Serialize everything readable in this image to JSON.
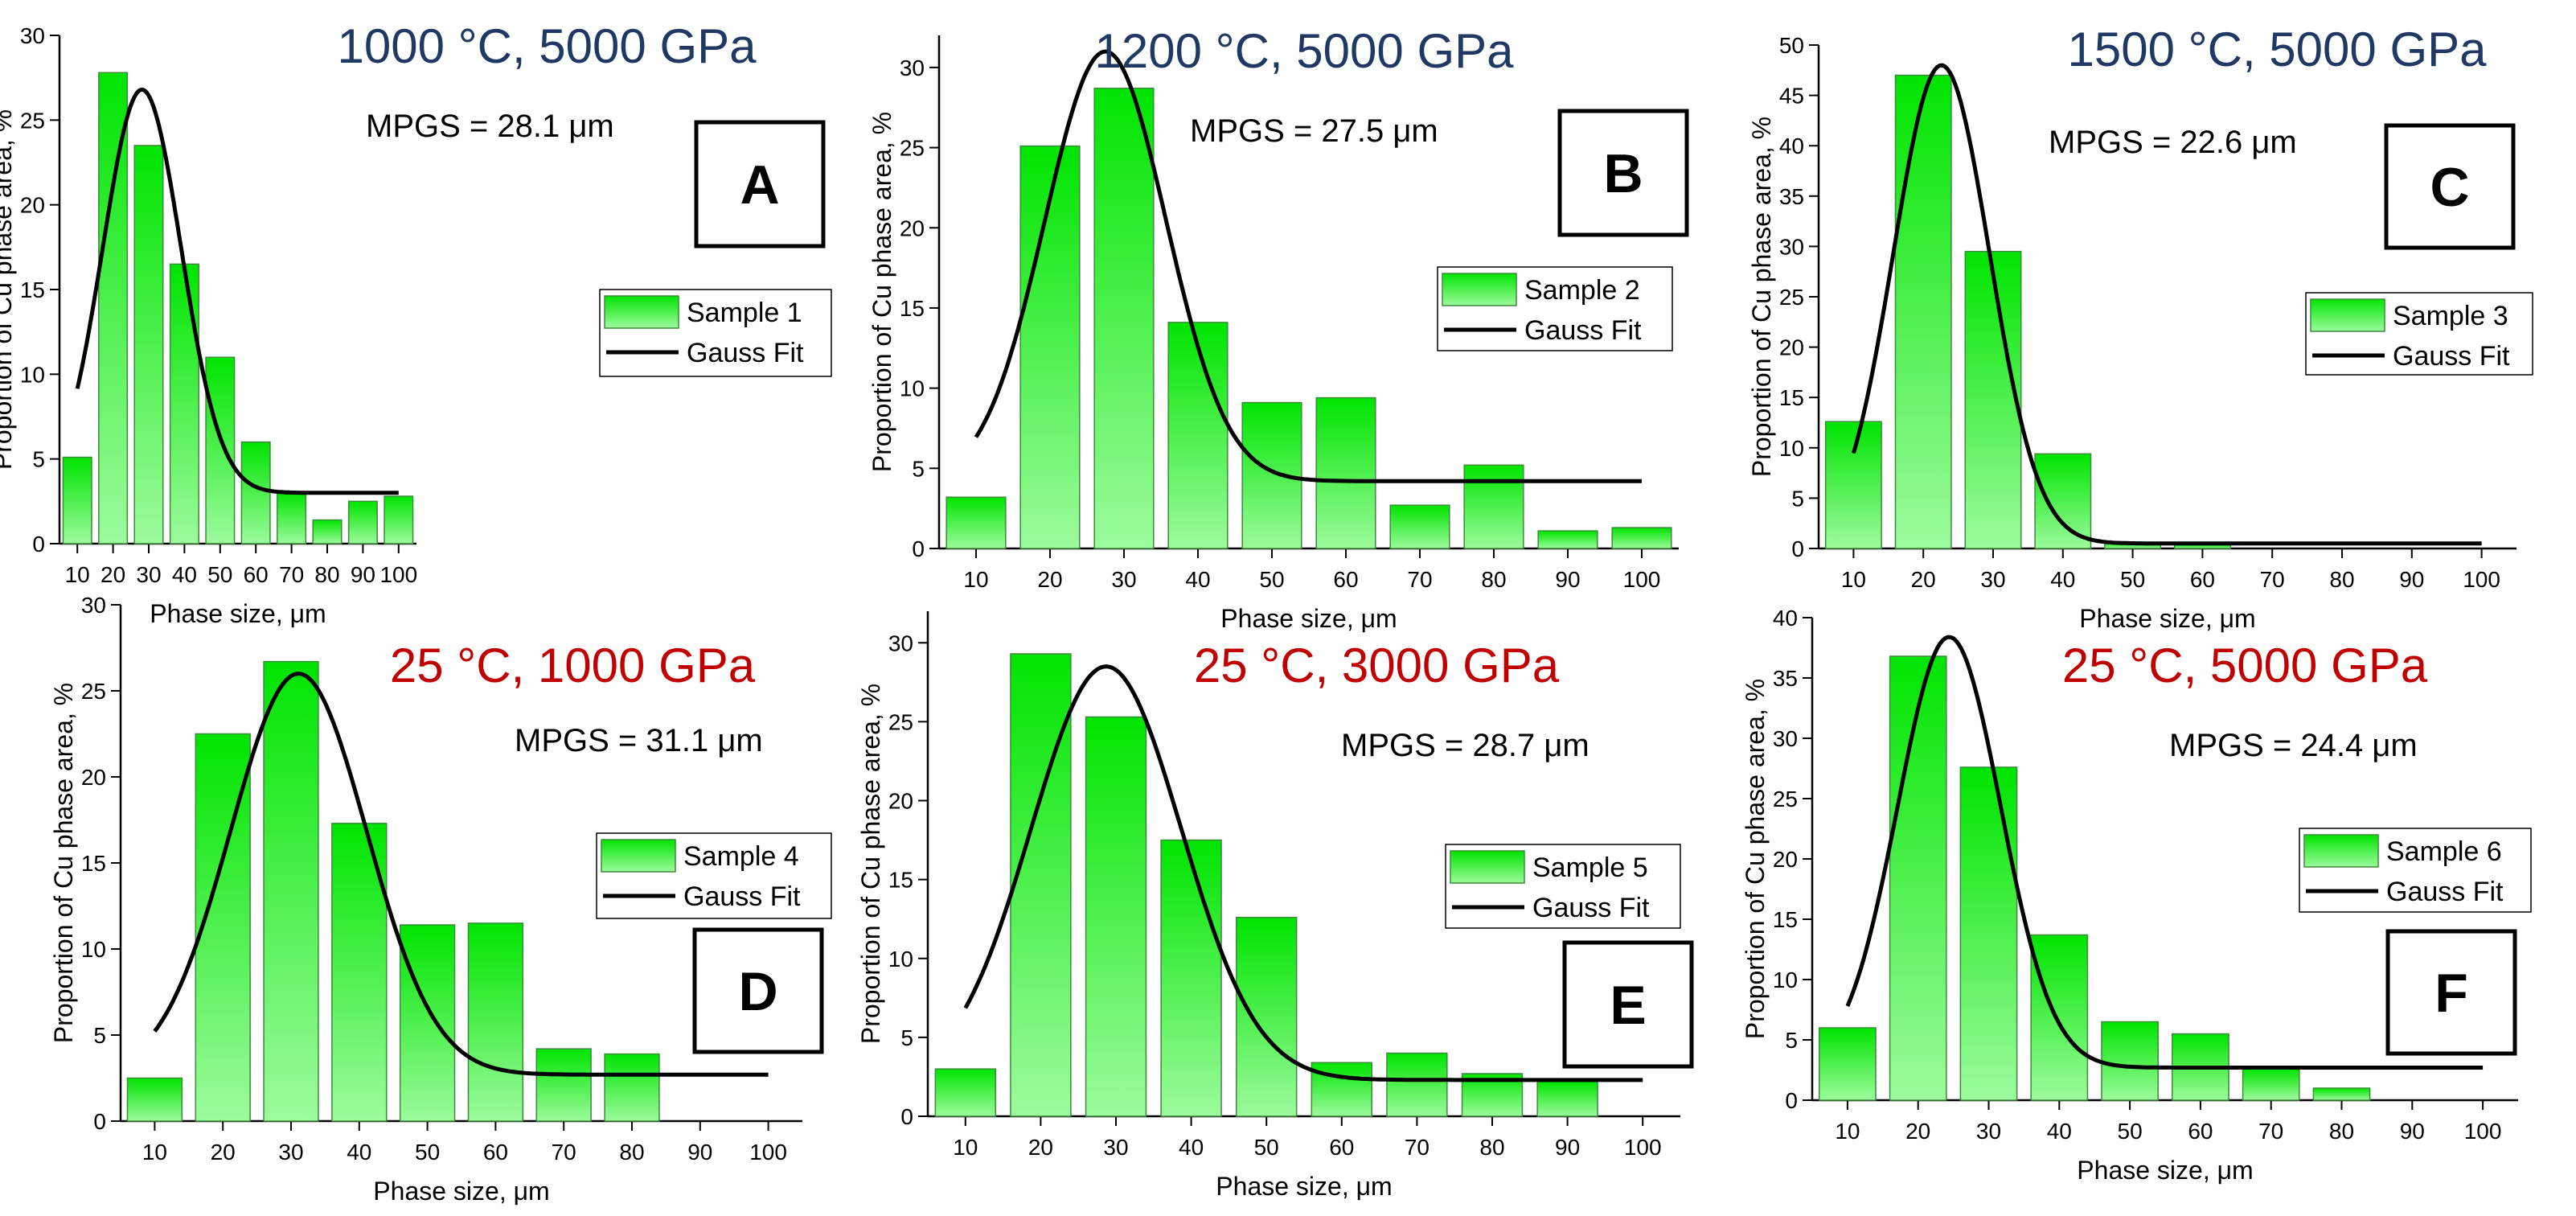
{
  "colors": {
    "bar_top": "#00e400",
    "bar_bottom": "#9dfb9d",
    "bar_edge": "#3c8a3c",
    "fit_line": "#000000",
    "title_blue": "#1f3864",
    "title_red": "#c00000"
  },
  "chart_data": [
    {
      "type": "bar",
      "panel": "A",
      "title": "1000 °C, 5000 GPa",
      "title_color": "blue",
      "annotation": "MPGS = 28.1 μm",
      "xlabel": "Phase size, μm",
      "ylabel": "Proportion of Cu phase area, %",
      "categories": [
        "10",
        "20",
        "30",
        "40",
        "50",
        "60",
        "70",
        "80",
        "90",
        "100"
      ],
      "values": [
        5.1,
        27.8,
        23.5,
        16.5,
        11.0,
        6.0,
        3.0,
        1.4,
        2.5,
        2.8
      ],
      "ylim": [
        0,
        30
      ],
      "yticks": [
        "0",
        "5",
        "10",
        "15",
        "20",
        "25",
        "30"
      ],
      "fit": {
        "baseline": 3.0,
        "amplitude": 23.8,
        "center": 28.1,
        "sigma": 11.0
      },
      "legend": [
        "Sample 1",
        "Gauss Fit"
      ]
    },
    {
      "type": "bar",
      "panel": "B",
      "title": "1200 °C, 5000 GPa",
      "title_color": "blue",
      "annotation": "MPGS = 27.5 μm",
      "xlabel": "Phase size, μm",
      "ylabel": "Proportion of Cu phase area, %",
      "categories": [
        "10",
        "20",
        "30",
        "40",
        "50",
        "60",
        "70",
        "80",
        "90",
        "100"
      ],
      "values": [
        3.2,
        25.1,
        28.7,
        14.1,
        9.1,
        9.4,
        2.7,
        5.2,
        1.1,
        1.3
      ],
      "ylim": [
        0,
        32
      ],
      "yticks": [
        "0",
        "5",
        "10",
        "15",
        "20",
        "25",
        "30"
      ],
      "fit": {
        "baseline": 4.2,
        "amplitude": 26.8,
        "center": 27.5,
        "sigma": 8.2
      },
      "legend": [
        "Sample 2",
        "Gauss Fit"
      ]
    },
    {
      "type": "bar",
      "panel": "C",
      "title": "1500 °C, 5000 GPa",
      "title_color": "blue",
      "annotation": "MPGS = 22.6 μm",
      "xlabel": "Phase size, μm",
      "ylabel": "Proportion of Cu phase area, %",
      "categories": [
        "10",
        "20",
        "30",
        "40",
        "50",
        "60",
        "70",
        "80",
        "90",
        "100"
      ],
      "values": [
        12.6,
        47.0,
        29.5,
        9.4,
        0.6,
        0.4,
        0.0,
        0.0,
        0.0,
        0.0
      ],
      "ylim": [
        0,
        50
      ],
      "yticks": [
        "0",
        "5",
        "10",
        "15",
        "20",
        "25",
        "30",
        "35",
        "40",
        "45",
        "50"
      ],
      "fit": {
        "baseline": 0.5,
        "amplitude": 47.5,
        "center": 22.6,
        "sigma": 6.9
      },
      "legend": [
        "Sample 3",
        "Gauss Fit"
      ]
    },
    {
      "type": "bar",
      "panel": "D",
      "title": "25 °C, 1000 GPa",
      "title_color": "red",
      "annotation": "MPGS = 31.1 μm",
      "xlabel": "Phase size, μm",
      "ylabel": "Proportion of Cu phase area, %",
      "categories": [
        "10",
        "20",
        "30",
        "40",
        "50",
        "60",
        "70",
        "80",
        "90",
        "100"
      ],
      "values": [
        2.5,
        22.5,
        26.7,
        17.3,
        11.4,
        11.5,
        4.2,
        3.9,
        0.0,
        0.0
      ],
      "ylim": [
        0,
        30
      ],
      "yticks": [
        "0",
        "5",
        "10",
        "15",
        "20",
        "25",
        "30"
      ],
      "fit": {
        "baseline": 2.7,
        "amplitude": 23.3,
        "center": 31.1,
        "sigma": 10.0
      },
      "legend": [
        "Sample 4",
        "Gauss Fit"
      ]
    },
    {
      "type": "bar",
      "panel": "E",
      "title": "25 °C, 3000 GPa",
      "title_color": "red",
      "annotation": "MPGS = 28.7 μm",
      "xlabel": "Phase size, μm",
      "ylabel": "Proportion of Cu phase area, %",
      "categories": [
        "10",
        "20",
        "30",
        "40",
        "50",
        "60",
        "70",
        "80",
        "90",
        "100"
      ],
      "values": [
        3.0,
        29.3,
        25.3,
        17.5,
        12.6,
        3.4,
        4.0,
        2.7,
        2.2,
        0.0
      ],
      "ylim": [
        0,
        32
      ],
      "yticks": [
        "0",
        "5",
        "10",
        "15",
        "20",
        "25",
        "30"
      ],
      "fit": {
        "baseline": 2.3,
        "amplitude": 26.2,
        "center": 28.7,
        "sigma": 10.0
      },
      "legend": [
        "Sample 5",
        "Gauss Fit"
      ]
    },
    {
      "type": "bar",
      "panel": "F",
      "title": "25 °C, 5000 GPa",
      "title_color": "red",
      "annotation": "MPGS = 24.4 μm",
      "xlabel": "Phase size, μm",
      "ylabel": "Proportion of Cu phase area, %",
      "categories": [
        "10",
        "20",
        "30",
        "40",
        "50",
        "60",
        "70",
        "80",
        "90",
        "100"
      ],
      "values": [
        6.0,
        36.8,
        27.6,
        13.7,
        6.5,
        5.5,
        2.6,
        1.0,
        0.0,
        0.0
      ],
      "ylim": [
        0,
        40
      ],
      "yticks": [
        "0",
        "5",
        "10",
        "15",
        "20",
        "25",
        "30",
        "35",
        "40"
      ],
      "fit": {
        "baseline": 2.7,
        "amplitude": 35.7,
        "center": 24.4,
        "sigma": 7.3
      },
      "legend": [
        "Sample 6",
        "Gauss Fit"
      ]
    }
  ]
}
